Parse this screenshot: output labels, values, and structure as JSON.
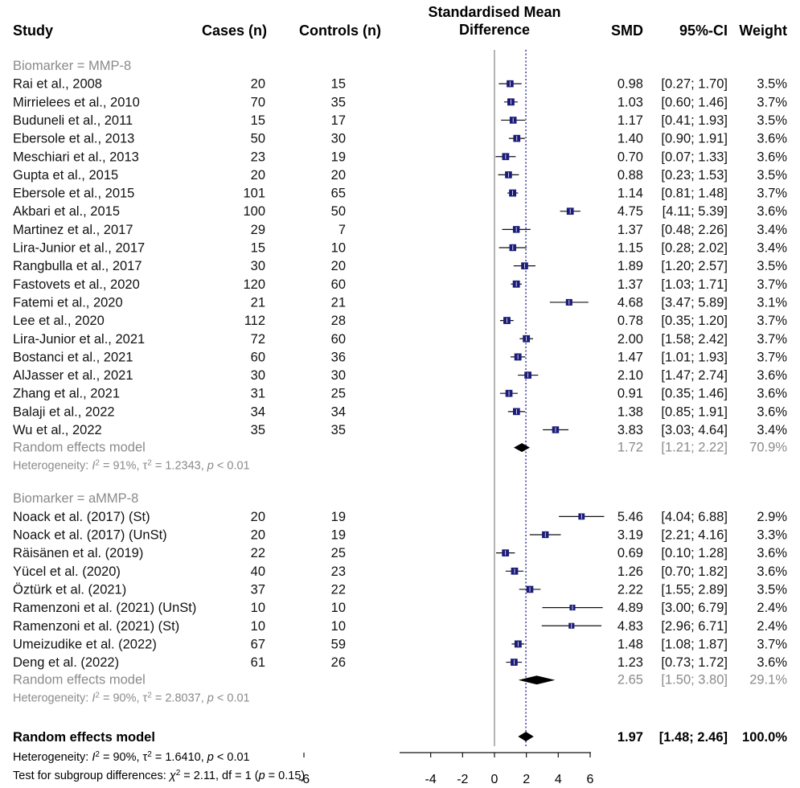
{
  "chart_data": {
    "type": "forest",
    "headers": {
      "study": "Study",
      "cases": "Cases (n)",
      "controls": "Controls (n)",
      "plot_title_line1": "Standardised Mean",
      "plot_title_line2": "Difference",
      "smd": "SMD",
      "ci": "95%-CI",
      "weight": "Weight"
    },
    "x_axis": {
      "range": [
        -6,
        6
      ],
      "ticks": [
        -6,
        -4,
        -2,
        0,
        2,
        4,
        6
      ],
      "tick_labels": [
        "-6",
        "-4",
        "-2",
        "0",
        "2",
        "4",
        "6"
      ]
    },
    "reference_line": 0,
    "pooled_line": 1.97,
    "subgroups": [
      {
        "label": "Biomarker = MMP-8",
        "studies": [
          {
            "name": "Rai et al., 2008",
            "cases": "20",
            "controls": "15",
            "smd": 0.98,
            "lo": 0.27,
            "hi": 1.7,
            "smd_text": "0.98",
            "ci_text": "[0.27; 1.70]",
            "weight_text": "3.5%",
            "weight": 3.5
          },
          {
            "name": "Mirrielees et al., 2010",
            "cases": "70",
            "controls": "35",
            "smd": 1.03,
            "lo": 0.6,
            "hi": 1.46,
            "smd_text": "1.03",
            "ci_text": "[0.60; 1.46]",
            "weight_text": "3.7%",
            "weight": 3.7
          },
          {
            "name": "Buduneli et al., 2011",
            "cases": "15",
            "controls": "17",
            "smd": 1.17,
            "lo": 0.41,
            "hi": 1.93,
            "smd_text": "1.17",
            "ci_text": "[0.41; 1.93]",
            "weight_text": "3.5%",
            "weight": 3.5
          },
          {
            "name": "Ebersole et al., 2013",
            "cases": "50",
            "controls": "30",
            "smd": 1.4,
            "lo": 0.9,
            "hi": 1.91,
            "smd_text": "1.40",
            "ci_text": "[0.90; 1.91]",
            "weight_text": "3.6%",
            "weight": 3.6
          },
          {
            "name": "Meschiari et al., 2013",
            "cases": "23",
            "controls": "19",
            "smd": 0.7,
            "lo": 0.07,
            "hi": 1.33,
            "smd_text": "0.70",
            "ci_text": "[0.07; 1.33]",
            "weight_text": "3.6%",
            "weight": 3.6
          },
          {
            "name": "Gupta et al., 2015",
            "cases": "20",
            "controls": "20",
            "smd": 0.88,
            "lo": 0.23,
            "hi": 1.53,
            "smd_text": "0.88",
            "ci_text": "[0.23; 1.53]",
            "weight_text": "3.5%",
            "weight": 3.5
          },
          {
            "name": "Ebersole et al., 2015",
            "cases": "101",
            "controls": "65",
            "smd": 1.14,
            "lo": 0.81,
            "hi": 1.48,
            "smd_text": "1.14",
            "ci_text": "[0.81; 1.48]",
            "weight_text": "3.7%",
            "weight": 3.7
          },
          {
            "name": "Akbari et al., 2015",
            "cases": "100",
            "controls": "50",
            "smd": 4.75,
            "lo": 4.11,
            "hi": 5.39,
            "smd_text": "4.75",
            "ci_text": "[4.11; 5.39]",
            "weight_text": "3.6%",
            "weight": 3.6
          },
          {
            "name": "Martinez et al., 2017",
            "cases": "29",
            "controls": "7",
            "smd": 1.37,
            "lo": 0.48,
            "hi": 2.26,
            "smd_text": "1.37",
            "ci_text": "[0.48; 2.26]",
            "weight_text": "3.4%",
            "weight": 3.4
          },
          {
            "name": "Lira-Junior et al., 2017",
            "cases": "15",
            "controls": "10",
            "smd": 1.15,
            "lo": 0.28,
            "hi": 2.02,
            "smd_text": "1.15",
            "ci_text": "[0.28; 2.02]",
            "weight_text": "3.4%",
            "weight": 3.4
          },
          {
            "name": "Rangbulla et al., 2017",
            "cases": "30",
            "controls": "20",
            "smd": 1.89,
            "lo": 1.2,
            "hi": 2.57,
            "smd_text": "1.89",
            "ci_text": "[1.20; 2.57]",
            "weight_text": "3.5%",
            "weight": 3.5
          },
          {
            "name": "Fastovets et al., 2020",
            "cases": "120",
            "controls": "60",
            "smd": 1.37,
            "lo": 1.03,
            "hi": 1.71,
            "smd_text": "1.37",
            "ci_text": "[1.03; 1.71]",
            "weight_text": "3.7%",
            "weight": 3.7
          },
          {
            "name": "Fatemi et al., 2020",
            "cases": "21",
            "controls": "21",
            "smd": 4.68,
            "lo": 3.47,
            "hi": 5.89,
            "smd_text": "4.68",
            "ci_text": "[3.47; 5.89]",
            "weight_text": "3.1%",
            "weight": 3.1
          },
          {
            "name": "Lee et al., 2020",
            "cases": "112",
            "controls": "28",
            "smd": 0.78,
            "lo": 0.35,
            "hi": 1.2,
            "smd_text": "0.78",
            "ci_text": "[0.35; 1.20]",
            "weight_text": "3.7%",
            "weight": 3.7
          },
          {
            "name": "Lira-Junior et al., 2021",
            "cases": "72",
            "controls": "60",
            "smd": 2.0,
            "lo": 1.58,
            "hi": 2.42,
            "smd_text": "2.00",
            "ci_text": "[1.58; 2.42]",
            "weight_text": "3.7%",
            "weight": 3.7
          },
          {
            "name": "Bostanci et al., 2021",
            "cases": "60",
            "controls": "36",
            "smd": 1.47,
            "lo": 1.01,
            "hi": 1.93,
            "smd_text": "1.47",
            "ci_text": "[1.01; 1.93]",
            "weight_text": "3.7%",
            "weight": 3.7
          },
          {
            "name": "AlJasser et al., 2021",
            "cases": "30",
            "controls": "30",
            "smd": 2.1,
            "lo": 1.47,
            "hi": 2.74,
            "smd_text": "2.10",
            "ci_text": "[1.47; 2.74]",
            "weight_text": "3.6%",
            "weight": 3.6
          },
          {
            "name": "Zhang et al., 2021",
            "cases": "31",
            "controls": "25",
            "smd": 0.91,
            "lo": 0.35,
            "hi": 1.46,
            "smd_text": "0.91",
            "ci_text": "[0.35; 1.46]",
            "weight_text": "3.6%",
            "weight": 3.6
          },
          {
            "name": "Balaji et al., 2022",
            "cases": "34",
            "controls": "34",
            "smd": 1.38,
            "lo": 0.85,
            "hi": 1.91,
            "smd_text": "1.38",
            "ci_text": "[0.85; 1.91]",
            "weight_text": "3.6%",
            "weight": 3.6
          },
          {
            "name": "Wu et al., 2022",
            "cases": "35",
            "controls": "35",
            "smd": 3.83,
            "lo": 3.03,
            "hi": 4.64,
            "smd_text": "3.83",
            "ci_text": "[3.03; 4.64]",
            "weight_text": "3.4%",
            "weight": 3.4
          }
        ],
        "random": {
          "label": "Random effects model",
          "smd": 1.72,
          "lo": 1.21,
          "hi": 2.22,
          "smd_text": "1.72",
          "ci_text": "[1.21; 2.22]",
          "weight_text": "70.9%"
        },
        "heterogeneity": {
          "prefix": "Heterogeneity: ",
          "i2": "= 91%, ",
          "tau": "= 1.2343, ",
          "p": "< 0.01"
        }
      },
      {
        "label": "Biomarker = aMMP-8",
        "studies": [
          {
            "name": "Noack et al. (2017) (St)",
            "cases": "20",
            "controls": "19",
            "smd": 5.46,
            "lo": 4.04,
            "hi": 6.88,
            "smd_text": "5.46",
            "ci_text": "[4.04; 6.88]",
            "weight_text": "2.9%",
            "weight": 2.9
          },
          {
            "name": "Noack et al. (2017) (UnSt)",
            "cases": "20",
            "controls": "19",
            "smd": 3.19,
            "lo": 2.21,
            "hi": 4.16,
            "smd_text": "3.19",
            "ci_text": "[2.21; 4.16]",
            "weight_text": "3.3%",
            "weight": 3.3
          },
          {
            "name": "Räisänen et al. (2019)",
            "cases": "22",
            "controls": "25",
            "smd": 0.69,
            "lo": 0.1,
            "hi": 1.28,
            "smd_text": "0.69",
            "ci_text": "[0.10; 1.28]",
            "weight_text": "3.6%",
            "weight": 3.6
          },
          {
            "name": "Yücel et al. (2020)",
            "cases": "40",
            "controls": "23",
            "smd": 1.26,
            "lo": 0.7,
            "hi": 1.82,
            "smd_text": "1.26",
            "ci_text": "[0.70; 1.82]",
            "weight_text": "3.6%",
            "weight": 3.6
          },
          {
            "name": "Öztürk et al. (2021)",
            "cases": "37",
            "controls": "22",
            "smd": 2.22,
            "lo": 1.55,
            "hi": 2.89,
            "smd_text": "2.22",
            "ci_text": "[1.55; 2.89]",
            "weight_text": "3.5%",
            "weight": 3.5
          },
          {
            "name": "Ramenzoni et al. (2021) (UnSt)",
            "cases": "10",
            "controls": "10",
            "smd": 4.89,
            "lo": 3.0,
            "hi": 6.79,
            "smd_text": "4.89",
            "ci_text": "[3.00; 6.79]",
            "weight_text": "2.4%",
            "weight": 2.4
          },
          {
            "name": "Ramenzoni et al. (2021) (St)",
            "cases": "10",
            "controls": "10",
            "smd": 4.83,
            "lo": 2.96,
            "hi": 6.71,
            "smd_text": "4.83",
            "ci_text": "[2.96; 6.71]",
            "weight_text": "2.4%",
            "weight": 2.4
          },
          {
            "name": "Umeizudike et al. (2022)",
            "cases": "67",
            "controls": "59",
            "smd": 1.48,
            "lo": 1.08,
            "hi": 1.87,
            "smd_text": "1.48",
            "ci_text": "[1.08; 1.87]",
            "weight_text": "3.7%",
            "weight": 3.7
          },
          {
            "name": "Deng et al. (2022)",
            "cases": "61",
            "controls": "26",
            "smd": 1.23,
            "lo": 0.73,
            "hi": 1.72,
            "smd_text": "1.23",
            "ci_text": "[0.73; 1.72]",
            "weight_text": "3.6%",
            "weight": 3.6
          }
        ],
        "random": {
          "label": "Random effects model",
          "smd": 2.65,
          "lo": 1.5,
          "hi": 3.8,
          "smd_text": "2.65",
          "ci_text": "[1.50; 3.80]",
          "weight_text": "29.1%"
        },
        "heterogeneity": {
          "prefix": "Heterogeneity: ",
          "i2": "= 90%, ",
          "tau": "= 2.8037, ",
          "p": "< 0.01"
        }
      }
    ],
    "overall": {
      "label": "Random effects model",
      "smd": 1.97,
      "lo": 1.48,
      "hi": 2.46,
      "smd_text": "1.97",
      "ci_text": "[1.48; 2.46]",
      "weight_text": "100.0%",
      "heterogeneity": {
        "prefix": "Heterogeneity: ",
        "i2": "= 90%, ",
        "tau": "= 1.6410, ",
        "p": "< 0.01"
      },
      "subgroup_test": {
        "prefix": "Test for subgroup differences: ",
        "chi": "= 2.11, df = 1 (",
        "p": "= 0.15)"
      }
    },
    "colors": {
      "box": "#1b1b7a",
      "diamond": "#000000",
      "pooled_line": "#2a2a9a",
      "grey_text": "#8a8a8a"
    }
  }
}
